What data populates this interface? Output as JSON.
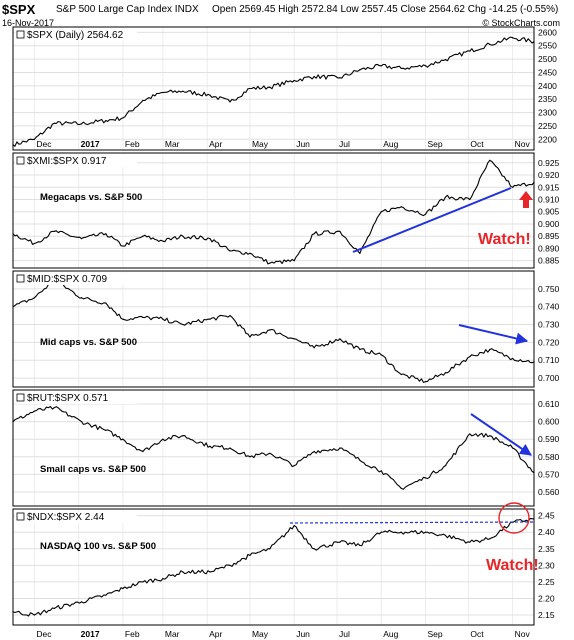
{
  "header": {
    "symbol": "$SPX",
    "name": "S&P 500 Large Cap Index  INDX",
    "date": "16-Nov-2017",
    "ohlc": "Open 2569.45  High 2572.84  Low 2557.45  Close 2564.62  Chg -14.25 (-0.55%)",
    "credit": "© StockCharts.com"
  },
  "months": [
    "Dec",
    "2017",
    "Feb",
    "Mar",
    "Apr",
    "May",
    "Jun",
    "Jul",
    "Aug",
    "Sep",
    "Oct",
    "Nov"
  ],
  "chart_data": [
    {
      "type": "line",
      "title": "$SPX (Daily) 2564.62",
      "label": "",
      "ylim": [
        2160,
        2620
      ],
      "yticks": [
        "2200",
        "2250",
        "2300",
        "2350",
        "2400",
        "2450",
        "2500",
        "2550",
        "2600"
      ],
      "x": [
        "2016-11-16",
        "2016-12-01",
        "2016-12-15",
        "2017-01-03",
        "2017-01-20",
        "2017-02-01",
        "2017-02-15",
        "2017-03-01",
        "2017-03-15",
        "2017-04-03",
        "2017-04-17",
        "2017-05-01",
        "2017-05-15",
        "2017-06-01",
        "2017-06-15",
        "2017-07-03",
        "2017-07-17",
        "2017-08-01",
        "2017-08-15",
        "2017-09-01",
        "2017-09-15",
        "2017-10-02",
        "2017-10-16",
        "2017-11-01",
        "2017-11-16"
      ],
      "values": [
        2180,
        2200,
        2260,
        2258,
        2270,
        2280,
        2345,
        2375,
        2380,
        2365,
        2340,
        2390,
        2395,
        2420,
        2435,
        2430,
        2460,
        2475,
        2465,
        2475,
        2498,
        2530,
        2555,
        2580,
        2565
      ]
    },
    {
      "type": "line",
      "title": "$XMI:$SPX 0.917",
      "label": "Megacaps vs. S&P 500",
      "annotation": "Watch!",
      "ylim": [
        0.882,
        0.929
      ],
      "yticks": [
        "0.885",
        "0.890",
        "0.895",
        "0.900",
        "0.905",
        "0.910",
        "0.915",
        "0.920",
        "0.925"
      ],
      "x": [
        "2016-11-16",
        "2016-12-01",
        "2016-12-15",
        "2017-01-03",
        "2017-01-20",
        "2017-02-01",
        "2017-02-15",
        "2017-03-01",
        "2017-03-15",
        "2017-04-03",
        "2017-04-17",
        "2017-05-01",
        "2017-05-15",
        "2017-06-01",
        "2017-06-15",
        "2017-07-03",
        "2017-07-17",
        "2017-08-01",
        "2017-08-15",
        "2017-09-01",
        "2017-09-15",
        "2017-10-02",
        "2017-10-16",
        "2017-11-01",
        "2017-11-16"
      ],
      "values": [
        0.896,
        0.892,
        0.897,
        0.894,
        0.896,
        0.891,
        0.895,
        0.893,
        0.895,
        0.894,
        0.889,
        0.888,
        0.884,
        0.885,
        0.896,
        0.897,
        0.888,
        0.905,
        0.907,
        0.904,
        0.911,
        0.91,
        0.926,
        0.915,
        0.917
      ]
    },
    {
      "type": "line",
      "title": "$MID:$SPX 0.709",
      "label": "Mid caps vs. S&P 500",
      "ylim": [
        0.695,
        0.76
      ],
      "yticks": [
        "0.700",
        "0.710",
        "0.720",
        "0.730",
        "0.740",
        "0.750"
      ],
      "x": [
        "2016-11-16",
        "2016-12-01",
        "2016-12-15",
        "2017-01-03",
        "2017-01-20",
        "2017-02-01",
        "2017-02-15",
        "2017-03-01",
        "2017-03-15",
        "2017-04-03",
        "2017-04-17",
        "2017-05-01",
        "2017-05-15",
        "2017-06-01",
        "2017-06-15",
        "2017-07-03",
        "2017-07-17",
        "2017-08-01",
        "2017-08-15",
        "2017-09-01",
        "2017-09-15",
        "2017-10-02",
        "2017-10-16",
        "2017-11-01",
        "2017-11-16"
      ],
      "values": [
        0.74,
        0.745,
        0.755,
        0.745,
        0.742,
        0.733,
        0.734,
        0.733,
        0.73,
        0.733,
        0.735,
        0.723,
        0.727,
        0.722,
        0.717,
        0.722,
        0.716,
        0.713,
        0.702,
        0.698,
        0.703,
        0.712,
        0.716,
        0.711,
        0.709
      ]
    },
    {
      "type": "line",
      "title": "$RUT:$SPX 0.571",
      "label": "Small caps vs. S&P 500",
      "ylim": [
        0.552,
        0.618
      ],
      "yticks": [
        "0.560",
        "0.570",
        "0.580",
        "0.590",
        "0.600",
        "0.610"
      ],
      "x": [
        "2016-11-16",
        "2016-12-01",
        "2016-12-15",
        "2017-01-03",
        "2017-01-20",
        "2017-02-01",
        "2017-02-15",
        "2017-03-01",
        "2017-03-15",
        "2017-04-03",
        "2017-04-17",
        "2017-05-01",
        "2017-05-15",
        "2017-06-01",
        "2017-06-15",
        "2017-07-03",
        "2017-07-17",
        "2017-08-01",
        "2017-08-15",
        "2017-09-01",
        "2017-09-15",
        "2017-10-02",
        "2017-10-16",
        "2017-11-01",
        "2017-11-16"
      ],
      "values": [
        0.6,
        0.606,
        0.608,
        0.6,
        0.595,
        0.59,
        0.583,
        0.59,
        0.592,
        0.586,
        0.585,
        0.58,
        0.582,
        0.575,
        0.583,
        0.585,
        0.578,
        0.572,
        0.562,
        0.568,
        0.575,
        0.593,
        0.592,
        0.585,
        0.571
      ]
    },
    {
      "type": "line",
      "title": "$NDX:$SPX 2.44",
      "label": "NASDAQ 100 vs. S&P 500",
      "annotation": "Watch!",
      "ylim": [
        2.12,
        2.47
      ],
      "yticks": [
        "2.15",
        "2.20",
        "2.25",
        "2.30",
        "2.35",
        "2.40",
        "2.45"
      ],
      "x": [
        "2016-11-16",
        "2016-12-01",
        "2016-12-15",
        "2017-01-03",
        "2017-01-20",
        "2017-02-01",
        "2017-02-15",
        "2017-03-01",
        "2017-03-15",
        "2017-04-03",
        "2017-04-17",
        "2017-05-01",
        "2017-05-15",
        "2017-06-01",
        "2017-06-15",
        "2017-07-03",
        "2017-07-17",
        "2017-08-01",
        "2017-08-15",
        "2017-09-01",
        "2017-09-15",
        "2017-10-02",
        "2017-10-16",
        "2017-11-01",
        "2017-11-16"
      ],
      "values": [
        2.16,
        2.15,
        2.17,
        2.19,
        2.21,
        2.23,
        2.25,
        2.26,
        2.28,
        2.28,
        2.3,
        2.33,
        2.35,
        2.42,
        2.35,
        2.37,
        2.36,
        2.4,
        2.4,
        2.4,
        2.39,
        2.37,
        2.38,
        2.43,
        2.44
      ]
    }
  ],
  "colors": {
    "series": "#000000",
    "trendline": "#2233dd",
    "annotation": "#e8262a"
  }
}
